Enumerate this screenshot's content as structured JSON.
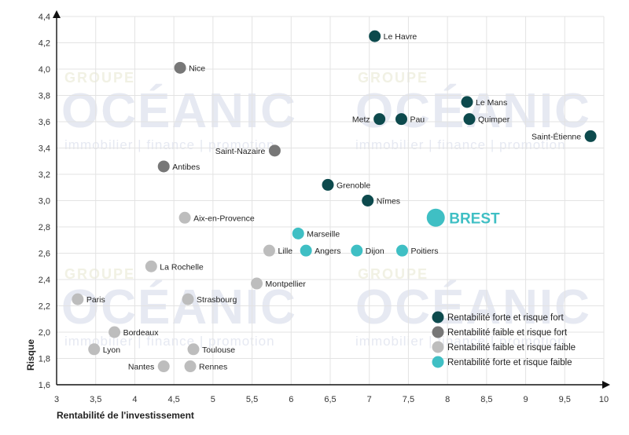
{
  "watermark": {
    "groupe": "GROUPE",
    "brand": "OCÉANIC",
    "tagline": "immobilier | finance | promotion"
  },
  "chart_data": {
    "type": "scatter",
    "xlabel": "Rentabilité de l'investissement",
    "ylabel": "Risque",
    "xlim": [
      3,
      10
    ],
    "ylim": [
      1.6,
      4.4
    ],
    "xticks": [
      "3",
      "3,5",
      "4",
      "4,5",
      "5",
      "5,5",
      "6",
      "6,5",
      "7",
      "7,5",
      "8",
      "8,5",
      "9",
      "9,5",
      "10"
    ],
    "yticks": [
      "1,6",
      "1,8",
      "2,0",
      "2,2",
      "2,4",
      "2,6",
      "2,8",
      "3,0",
      "3,2",
      "3,4",
      "3,6",
      "3,8",
      "4,0",
      "4,2",
      "4,4"
    ],
    "grid": true,
    "legend_position": "bottom-right",
    "series": [
      {
        "name": "Rentabilité forte et risque fort",
        "color": "#0d4a4d",
        "points": [
          {
            "label": "Le Havre",
            "x": 7.07,
            "y": 4.25
          },
          {
            "label": "Le Mans",
            "x": 8.25,
            "y": 3.75
          },
          {
            "label": "Metz",
            "x": 7.13,
            "y": 3.62
          },
          {
            "label": "Pau",
            "x": 7.41,
            "y": 3.62
          },
          {
            "label": "Quimper",
            "x": 8.28,
            "y": 3.62
          },
          {
            "label": "Saint-Étienne",
            "x": 9.83,
            "y": 3.49
          },
          {
            "label": "Grenoble",
            "x": 6.47,
            "y": 3.12
          },
          {
            "label": "Nîmes",
            "x": 6.98,
            "y": 3.0
          }
        ]
      },
      {
        "name": "Rentabilité faible et risque fort",
        "color": "#777777",
        "points": [
          {
            "label": "Nice",
            "x": 4.58,
            "y": 4.01
          },
          {
            "label": "Saint-Nazaire",
            "x": 5.79,
            "y": 3.38
          },
          {
            "label": "Antibes",
            "x": 4.37,
            "y": 3.26
          }
        ]
      },
      {
        "name": "Rentabilité faible et risque faible",
        "color": "#bdbdbd",
        "points": [
          {
            "label": "Aix-en-Provence",
            "x": 4.64,
            "y": 2.87
          },
          {
            "label": "Lille",
            "x": 5.72,
            "y": 2.62
          },
          {
            "label": "La Rochelle",
            "x": 4.21,
            "y": 2.5
          },
          {
            "label": "Montpellier",
            "x": 5.56,
            "y": 2.37
          },
          {
            "label": "Paris",
            "x": 3.27,
            "y": 2.25
          },
          {
            "label": "Strasbourg",
            "x": 4.68,
            "y": 2.25
          },
          {
            "label": "Bordeaux",
            "x": 3.74,
            "y": 2.0
          },
          {
            "label": "Lyon",
            "x": 3.48,
            "y": 1.87
          },
          {
            "label": "Toulouse",
            "x": 4.75,
            "y": 1.87
          },
          {
            "label": "Nantes",
            "x": 4.37,
            "y": 1.74
          },
          {
            "label": "Rennes",
            "x": 4.71,
            "y": 1.74
          }
        ]
      },
      {
        "name": "Rentabilité forte et risque faible",
        "color": "#3fbfc4",
        "points": [
          {
            "label": "Marseille",
            "x": 6.09,
            "y": 2.75
          },
          {
            "label": "Angers",
            "x": 6.19,
            "y": 2.62
          },
          {
            "label": "Dijon",
            "x": 6.84,
            "y": 2.62
          },
          {
            "label": "Poitiers",
            "x": 7.42,
            "y": 2.62
          }
        ]
      }
    ],
    "highlight": {
      "label": "BREST",
      "x": 7.85,
      "y": 2.87,
      "color": "#3fbfc4"
    }
  }
}
